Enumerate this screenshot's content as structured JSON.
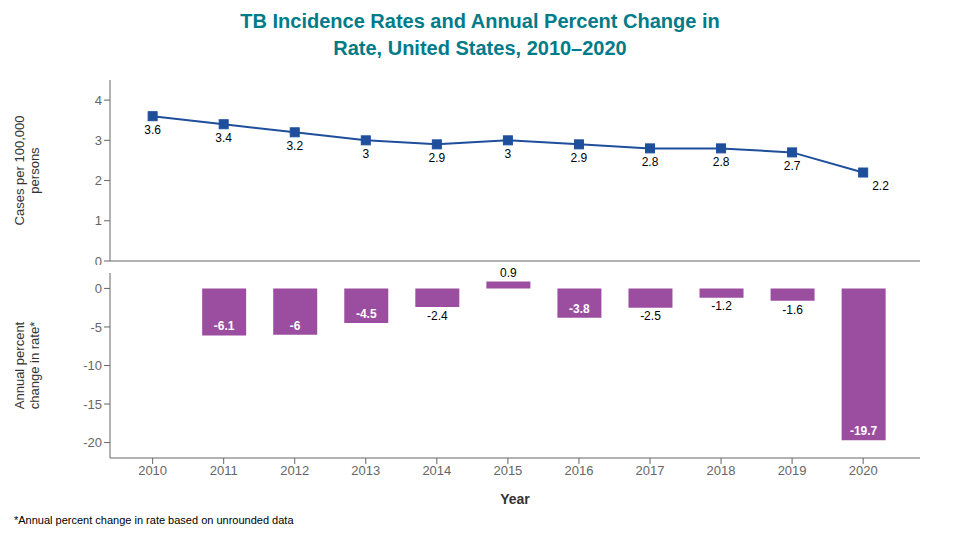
{
  "chart_data": [
    {
      "type": "line",
      "title": "TB Incidence Rates and Annual Percent Change in\nRate, United States, 2010–2020",
      "x": [
        2010,
        2011,
        2012,
        2013,
        2014,
        2015,
        2016,
        2017,
        2018,
        2019,
        2020
      ],
      "values": [
        3.6,
        3.4,
        3.2,
        3.0,
        2.9,
        3.0,
        2.9,
        2.8,
        2.8,
        2.7,
        2.2
      ],
      "color": "#1f4e9c",
      "marker": "square",
      "ylabel": "Cases per 100,000\npersons",
      "xlim": [
        2009.4,
        2020.8
      ],
      "ylim": [
        0,
        4.5
      ],
      "yticks": [
        0,
        1,
        2,
        3,
        4
      ],
      "tick_labels": "y",
      "data_labels": true
    },
    {
      "type": "bar",
      "x": [
        2010,
        2011,
        2012,
        2013,
        2014,
        2015,
        2016,
        2017,
        2018,
        2019,
        2020
      ],
      "values": [
        null,
        -6.1,
        -6.0,
        -4.5,
        -2.4,
        0.9,
        -3.8,
        -2.5,
        -1.2,
        -1.6,
        -19.7
      ],
      "color": "#9b4ea0",
      "ylabel": "Annual percent\nchange in rate*",
      "xlabel": "Year",
      "xlim": [
        2009.4,
        2020.8
      ],
      "xticks": [
        2010,
        2011,
        2012,
        2013,
        2014,
        2015,
        2016,
        2017,
        2018,
        2019,
        2020
      ],
      "ylim": [
        -22,
        2
      ],
      "yticks": [
        0,
        -5,
        -10,
        -15,
        -20
      ],
      "data_labels": true,
      "footnote": "*Annual percent change in rate based on unrounded data"
    }
  ]
}
